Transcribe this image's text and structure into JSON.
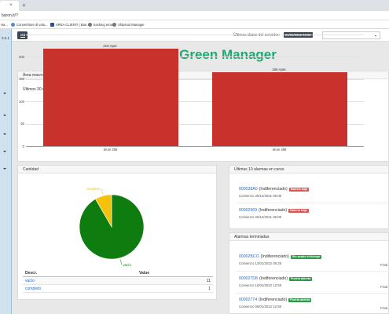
{
  "browser": {
    "tab_close": "×",
    "new_tab": "+",
    "url": "baron.it/?",
    "bookmarks": [
      {
        "label": "Ha...",
        "color": "#888888"
      },
      {
        "label": "Convertitore di valu...",
        "color": "#4e8bd6"
      },
      {
        "label": "AREA CLIENTI | Ban...",
        "color": "#2b4f8f"
      },
      {
        "label": "tracking email",
        "color": "#777777"
      },
      {
        "label": "Shipsoul Manager",
        "color": "#777777"
      }
    ]
  },
  "sidebar": {
    "version": "3.2.1"
  },
  "appbar": {
    "last_data_label": "Últimos datos del servidor:",
    "last_data_value": "21/01/2022 06:38"
  },
  "app_title": "Green Manager",
  "area_macro": {
    "header": "Área macro",
    "subtitle": "Últimos 30 días"
  },
  "chart_data": {
    "type": "bar",
    "title": "Últimos 30 días",
    "categories": [
      "drum 258",
      "drum 488"
    ],
    "values": [
      219,
      165
    ],
    "data_labels": [
      "219 Aper.",
      "165 Aper."
    ],
    "ylim": [
      0,
      250
    ],
    "yticks": [
      0,
      50,
      100,
      150,
      200,
      250
    ],
    "bar_color": "#c8312c",
    "grid": true
  },
  "cantidad": {
    "header": "Cantidad",
    "pie": {
      "slices": [
        {
          "label": "vacío",
          "value": 11,
          "color": "#0e7c0e"
        },
        {
          "label": "completo",
          "value": 1,
          "color": "#f4c20d"
        }
      ]
    },
    "table": {
      "columns": [
        "Descr.",
        "Value"
      ],
      "rows": [
        {
          "descr": "vacío",
          "value": "11"
        },
        {
          "descr": "completo",
          "value": "1"
        }
      ]
    }
  },
  "active_alarms": {
    "header": "Últimas 10 alarmas en curso",
    "items": [
      {
        "id": "000038A0",
        "type": "(Indiferenciado)",
        "badge": "Batería baja",
        "badge_color": "red",
        "detail": "Comienzo 29/12/2021 06:08"
      },
      {
        "id": "00002969",
        "type": "(Indiferenciado)",
        "badge": "Batería baja",
        "badge_color": "red",
        "detail": "Comienzo 26/12/2021 06:08"
      }
    ]
  },
  "finished_alarms": {
    "header": "Alarmas terminadas",
    "items": [
      {
        "id": "00002BCO",
        "type": "(Indiferenciado)",
        "badge": "Sin acabó el tiempo",
        "badge_color": "green",
        "detail": "Comienzo 13/01/2022 05:28",
        "final": "Final"
      },
      {
        "id": "000027D8",
        "type": "(Indiferenciado)",
        "badge": "Puerta abierta",
        "badge_color": "green",
        "detail": "Comienzo 10/01/2022 12:59",
        "final": "Final"
      },
      {
        "id": "00002774",
        "type": "(Indiferenciado)",
        "badge": "Puerta abierta",
        "badge_color": "green",
        "detail": "Comienzo 06/01/2022 12:59",
        "final": "Final"
      }
    ]
  }
}
